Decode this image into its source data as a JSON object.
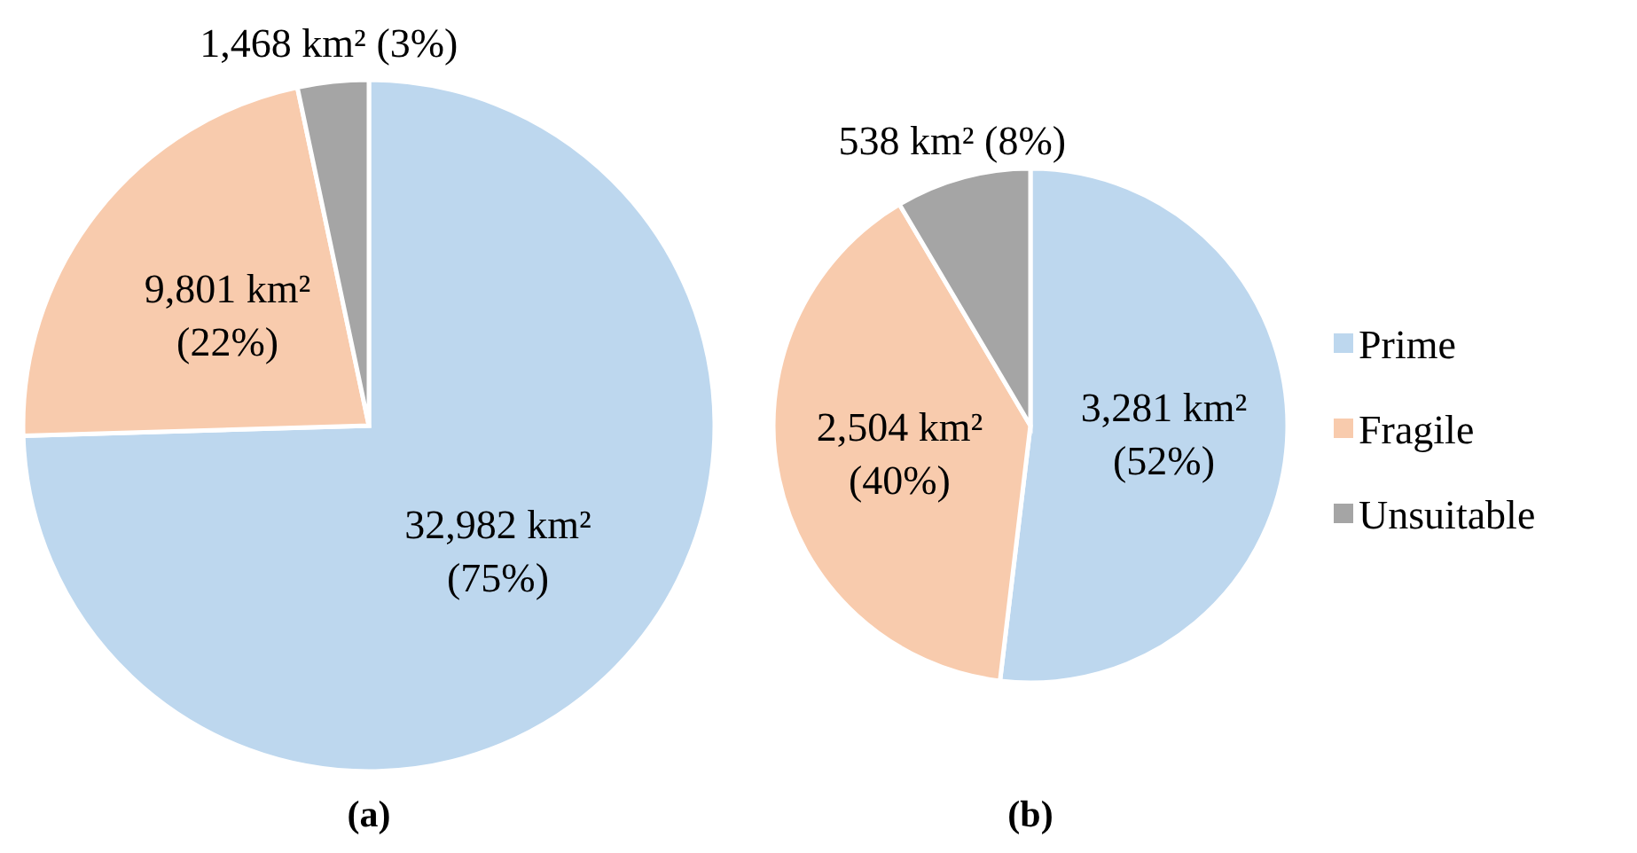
{
  "chart_data": [
    {
      "type": "pie",
      "title": "(a)",
      "categories": [
        null,
        null,
        null
      ],
      "values": [
        32982,
        9801,
        1468
      ],
      "colors": [
        "#bdd7ee",
        "#f8cbad",
        "#a5a5a5"
      ],
      "value_labels": [
        "32,982 km² (75%)",
        "9,801 km² (22%)",
        "1,468 km² (3%)"
      ]
    },
    {
      "type": "pie",
      "title": "(b)",
      "categories": [
        "Prime",
        "Fragile",
        "Unsuitable"
      ],
      "values": [
        3281,
        2504,
        538
      ],
      "colors": [
        "#bdd7ee",
        "#f8cbad",
        "#a5a5a5"
      ],
      "value_labels": [
        "3,281 km² (52%)",
        "2,504 km² (40%)",
        "538 km² (8%)"
      ],
      "legend": "right"
    }
  ]
}
